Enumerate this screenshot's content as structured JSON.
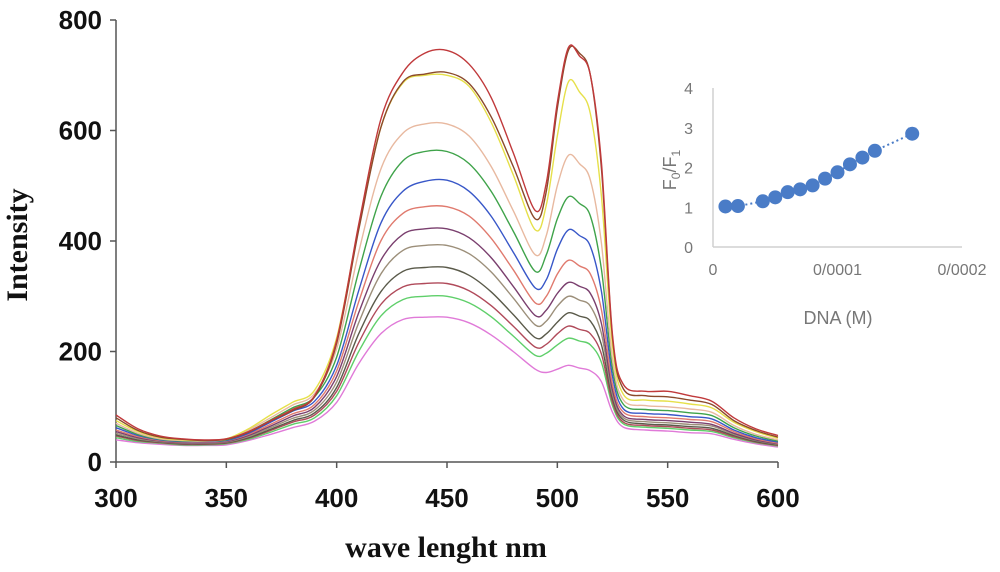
{
  "chart_data": [
    {
      "type": "line",
      "xlabel": "wave lenght nm",
      "ylabel": "Intensity",
      "xlim": [
        300,
        600
      ],
      "ylim": [
        0,
        800
      ],
      "xticks": [
        "300",
        "350",
        "400",
        "450",
        "500",
        "550",
        "600"
      ],
      "yticks": [
        "0",
        "200",
        "400",
        "600",
        "800"
      ],
      "grid": false,
      "legend": "none",
      "x": [
        300,
        310,
        320,
        330,
        340,
        350,
        360,
        370,
        380,
        390,
        400,
        410,
        420,
        430,
        440,
        450,
        460,
        470,
        480,
        490,
        495,
        500,
        505,
        510,
        515,
        520,
        525,
        530,
        540,
        550,
        560,
        570,
        580,
        590,
        600
      ],
      "series": [
        {
          "color": "#c0393b",
          "values": [
            85,
            60,
            47,
            42,
            40,
            42,
            55,
            75,
            95,
            120,
            220,
            430,
            620,
            705,
            740,
            745,
            720,
            660,
            560,
            455,
            505,
            650,
            750,
            735,
            700,
            540,
            230,
            140,
            128,
            128,
            120,
            110,
            80,
            60,
            48
          ]
        },
        {
          "color": "#8b4a2b",
          "values": [
            80,
            57,
            45,
            41,
            39,
            41,
            54,
            74,
            93,
            118,
            215,
            420,
            605,
            688,
            702,
            705,
            685,
            625,
            535,
            440,
            490,
            640,
            745,
            740,
            700,
            530,
            225,
            132,
            120,
            118,
            112,
            104,
            75,
            57,
            45
          ]
        },
        {
          "color": "#e6e04a",
          "values": [
            75,
            55,
            44,
            40,
            39,
            42,
            60,
            85,
            108,
            130,
            225,
            425,
            605,
            686,
            700,
            700,
            680,
            615,
            520,
            420,
            465,
            590,
            688,
            670,
            630,
            480,
            210,
            122,
            112,
            110,
            105,
            98,
            72,
            55,
            43
          ]
        },
        {
          "color": "#e8b9a0",
          "values": [
            70,
            52,
            42,
            39,
            38,
            41,
            58,
            80,
            103,
            124,
            205,
            380,
            530,
            595,
            612,
            612,
            590,
            535,
            455,
            375,
            410,
            500,
            555,
            540,
            510,
            395,
            185,
            112,
            102,
            100,
            96,
            90,
            66,
            50,
            40
          ]
        },
        {
          "color": "#3fa34a",
          "values": [
            66,
            50,
            41,
            38,
            38,
            40,
            55,
            76,
            98,
            118,
            190,
            345,
            480,
            545,
            562,
            562,
            540,
            490,
            418,
            345,
            375,
            440,
            480,
            468,
            445,
            348,
            170,
            104,
            95,
            93,
            89,
            84,
            62,
            47,
            38
          ]
        },
        {
          "color": "#3857c8",
          "values": [
            62,
            48,
            40,
            37,
            37,
            39,
            52,
            72,
            92,
            110,
            175,
            310,
            432,
            490,
            508,
            510,
            490,
            445,
            380,
            315,
            330,
            385,
            420,
            410,
            390,
            308,
            155,
            96,
            88,
            86,
            82,
            78,
            58,
            44,
            36
          ]
        },
        {
          "color": "#e07a6e",
          "values": [
            58,
            46,
            39,
            36,
            36,
            38,
            50,
            68,
            87,
            104,
            165,
            290,
            400,
            450,
            462,
            462,
            445,
            405,
            348,
            288,
            300,
            340,
            365,
            355,
            340,
            275,
            140,
            90,
            82,
            80,
            77,
            73,
            55,
            42,
            34
          ]
        },
        {
          "color": "#7a3f6e",
          "values": [
            55,
            44,
            38,
            35,
            35,
            37,
            48,
            65,
            83,
            99,
            155,
            270,
            365,
            412,
            422,
            422,
            406,
            370,
            318,
            265,
            275,
            305,
            325,
            318,
            305,
            250,
            130,
            84,
            77,
            75,
            72,
            68,
            52,
            40,
            33
          ]
        },
        {
          "color": "#9c8f7a",
          "values": [
            52,
            42,
            37,
            34,
            34,
            36,
            46,
            62,
            79,
            94,
            145,
            252,
            340,
            383,
            392,
            392,
            377,
            344,
            297,
            248,
            255,
            282,
            300,
            293,
            282,
            232,
            122,
            80,
            73,
            71,
            68,
            65,
            50,
            39,
            32
          ]
        },
        {
          "color": "#5a5a4a",
          "values": [
            49,
            40,
            36,
            33,
            33,
            35,
            44,
            59,
            75,
            89,
            135,
            232,
            308,
            345,
            352,
            352,
            338,
            308,
            267,
            225,
            232,
            253,
            270,
            264,
            255,
            212,
            115,
            76,
            69,
            67,
            64,
            61,
            48,
            37,
            31
          ]
        },
        {
          "color": "#b04a5a",
          "values": [
            47,
            39,
            35,
            32,
            32,
            34,
            43,
            57,
            72,
            85,
            128,
            216,
            285,
            317,
            323,
            323,
            310,
            283,
            246,
            208,
            213,
            232,
            246,
            240,
            232,
            195,
            108,
            72,
            66,
            64,
            61,
            58,
            46,
            36,
            30
          ]
        },
        {
          "color": "#5fcf6a",
          "values": [
            44,
            37,
            34,
            31,
            31,
            33,
            41,
            54,
            68,
            80,
            120,
            200,
            264,
            294,
            300,
            300,
            288,
            263,
            228,
            193,
            197,
            212,
            224,
            219,
            212,
            180,
            102,
            69,
            63,
            61,
            58,
            55,
            44,
            35,
            29
          ]
        },
        {
          "color": "#e07ad8",
          "values": [
            40,
            35,
            32,
            30,
            30,
            31,
            39,
            50,
            62,
            74,
            108,
            178,
            232,
            258,
            262,
            262,
            252,
            230,
            200,
            168,
            162,
            168,
            175,
            170,
            165,
            145,
            90,
            63,
            58,
            56,
            53,
            51,
            41,
            33,
            27
          ]
        }
      ]
    },
    {
      "type": "scatter",
      "xlabel": "DNA (M)",
      "ylabel": "F0/F1",
      "xlim": [
        0,
        0.0002
      ],
      "ylim": [
        0,
        4
      ],
      "xticks": [
        "0",
        "0/0001",
        "0/0002"
      ],
      "yticks": [
        "0",
        "1",
        "2",
        "3",
        "4"
      ],
      "trendline": "dotted",
      "marker_color": "#4a7cc7",
      "x": [
        1e-05,
        2e-05,
        4e-05,
        5e-05,
        6e-05,
        7e-05,
        8e-05,
        9e-05,
        0.0001,
        0.00011,
        0.00012,
        0.00013,
        0.00016
      ],
      "y": [
        1.02,
        1.03,
        1.15,
        1.25,
        1.38,
        1.45,
        1.55,
        1.72,
        1.88,
        2.08,
        2.25,
        2.42,
        2.85
      ]
    }
  ]
}
